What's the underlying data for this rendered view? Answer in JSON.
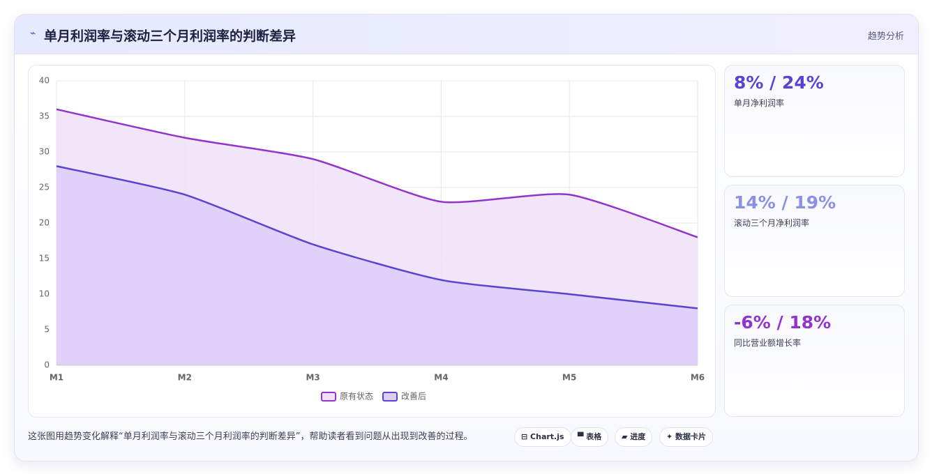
{
  "header": {
    "title": "单月利润率与滚动三个月利润率的判断差异",
    "tag": "趋势分析"
  },
  "chart_data": {
    "type": "area",
    "categories": [
      "M1",
      "M2",
      "M3",
      "M4",
      "M5",
      "M6"
    ],
    "series": [
      {
        "name": "原有状态",
        "color": "#9333cf",
        "fill": "#efe1f9",
        "values": [
          36,
          32,
          29,
          23,
          24,
          18
        ]
      },
      {
        "name": "改善后",
        "color": "#5a43d3",
        "fill": "#dccef8",
        "values": [
          28,
          24,
          17,
          12,
          10,
          8
        ]
      }
    ],
    "ylim": [
      0,
      40
    ],
    "yticks": [
      0,
      5,
      10,
      15,
      20,
      25,
      30,
      35,
      40
    ],
    "grid": true,
    "legend": "bottom"
  },
  "cards": [
    {
      "value": "8% / 24%",
      "label": "单月净利润率",
      "color": "#5a43d3"
    },
    {
      "value": "14% / 19%",
      "label": "滚动三个月净利润率",
      "color": "#8b8fe6"
    },
    {
      "value": "-6% / 18%",
      "label": "同比营业额增长率",
      "color": "#9333cf"
    }
  ],
  "footer": {
    "text": "这张图用趋势变化解释“单月利润率与滚动三个月利润率的判断差异”，帮助读者看到问题从出现到改善的过程。",
    "chips": [
      "Chart.js",
      "表格",
      "进度",
      "数据卡片"
    ]
  }
}
